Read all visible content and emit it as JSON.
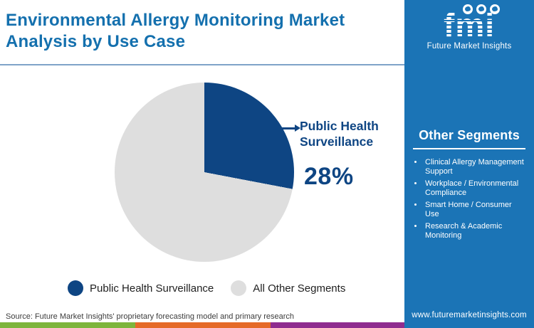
{
  "header": {
    "title": "Environmental Allergy Monitoring Market Analysis by Use Case"
  },
  "logo": {
    "word": "fmi",
    "subtext": "Future Market Insights"
  },
  "sidebar": {
    "heading": "Other Segments",
    "items": [
      "Clinical Allergy Management Support",
      "Workplace / Environmental Compliance",
      "Smart Home / Consumer Use",
      "Research & Academic Monitoring"
    ],
    "url": "www.futuremarketinsights.com"
  },
  "chart_data": {
    "type": "pie",
    "title": "Environmental Allergy Monitoring Market Analysis by Use Case",
    "slices": [
      {
        "label": "Public Health Surveillance",
        "value": 28,
        "color": "#0E4583"
      },
      {
        "label": "All Other Segments",
        "value": 72,
        "color": "#DEDEDE"
      }
    ],
    "start_angle_deg": 0,
    "direction": "clockwise",
    "callout": {
      "label": "Public Health Surveillance",
      "value_label": "28%"
    },
    "legend_position": "bottom"
  },
  "legend": {
    "items": [
      {
        "label": "Public Health Surveillance",
        "color": "#0E4583"
      },
      {
        "label": "All Other Segments",
        "color": "#DEDEDE"
      }
    ]
  },
  "footer": {
    "source": "Source: Future Market Insights' proprietary forecasting model and primary research"
  },
  "colors": {
    "title_blue": "#1470AE",
    "navy": "#0E4583",
    "light_gray": "#DEDEDE",
    "sidebar_blue": "#1B74B6",
    "bar_green": "#7DB53C",
    "bar_orange": "#E56A28",
    "bar_purple": "#8F2C8F"
  }
}
